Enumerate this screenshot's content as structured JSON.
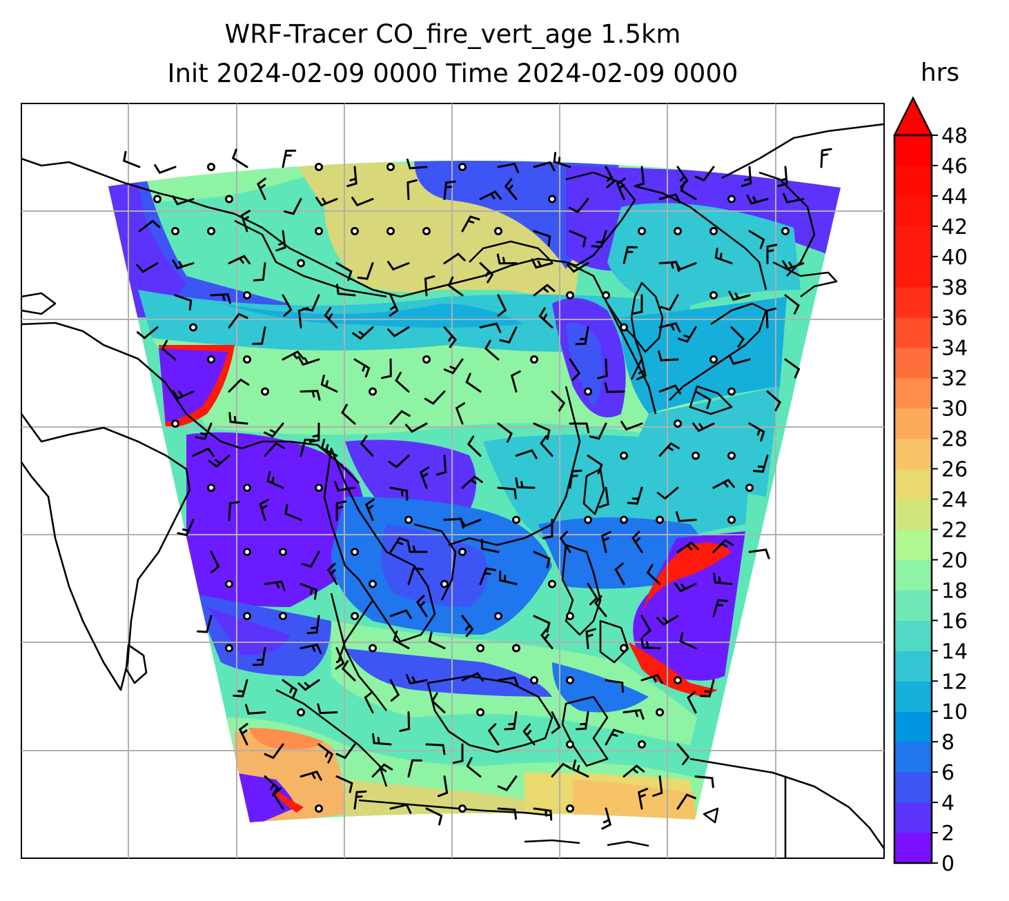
{
  "title": {
    "line1": "WRF-Tracer CO_fire_vert_age 1.5km",
    "line2": "Init 2024-02-09 0000 Time 2024-02-09 0000"
  },
  "colorbar": {
    "unit": "hrs",
    "ticks": [
      0,
      2,
      4,
      6,
      8,
      10,
      12,
      14,
      16,
      18,
      20,
      22,
      24,
      26,
      28,
      30,
      32,
      34,
      36,
      38,
      40,
      42,
      44,
      46,
      48
    ],
    "levels": [
      0,
      2,
      4,
      6,
      8,
      10,
      12,
      14,
      16,
      18,
      20,
      22,
      24,
      26,
      28,
      30,
      32,
      34,
      36,
      38,
      40,
      42,
      44,
      46,
      48
    ],
    "colors": [
      "#7a10ff",
      "#5c33fb",
      "#3d55f5",
      "#1f76ed",
      "#0196e1",
      "#16afdb",
      "#33c6d3",
      "#51d9c6",
      "#70e8b6",
      "#8ff3a4",
      "#b0f890",
      "#cfe67c",
      "#e9d96f",
      "#f6c466",
      "#fdaa5b",
      "#ff8d4c",
      "#ff6f3b",
      "#ff4f29",
      "#ff3016",
      "#ff1a0b",
      "#ff1a0b",
      "#ff1206",
      "#ff0b03",
      "#ff0000"
    ],
    "extend": "max",
    "extend_color": "#ff0000"
  },
  "map": {
    "projection": "lambert-like",
    "gridlines": true,
    "features": [
      "coastlines",
      "country-borders",
      "wind-barbs",
      "calm-circles"
    ],
    "colors": {
      "deep-violet": "#6b1cff",
      "blue": "#3d55f5",
      "cyan": "#33c6d3",
      "light-green": "#8ff3a4",
      "khaki": "#d8d87a",
      "orange": "#f6b466",
      "red": "#ff1a0b",
      "grid": "#b0b0b0",
      "coast": "#000000"
    }
  }
}
